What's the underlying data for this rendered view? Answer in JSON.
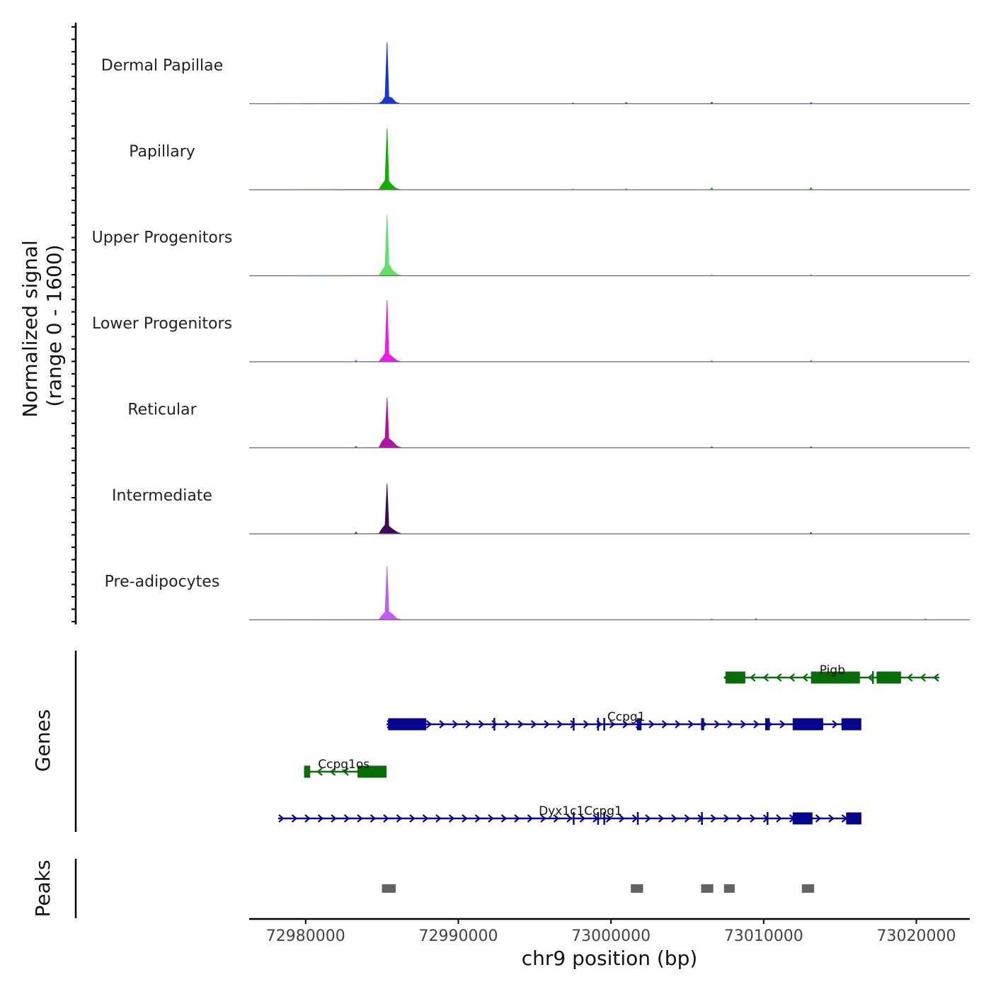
{
  "chart_data": {
    "type": "area",
    "title": "",
    "xlabel": "chr9 position (bp)",
    "ylabel": "Normalized signal\n(range 0 - 1600)",
    "ylabel_lines": [
      "Normalized signal",
      "(range 0 - 1600)"
    ],
    "ylim": [
      0,
      1600
    ],
    "xlim": [
      72976300,
      73023500
    ],
    "x_ticks": [
      72980000,
      72990000,
      73000000,
      73010000,
      73020000
    ],
    "x_tick_labels": [
      "72980000",
      "72990000",
      "73000000",
      "73010000",
      "73020000"
    ],
    "panel_labels": {
      "genes": "Genes",
      "peaks": "Peaks"
    },
    "series": [
      {
        "name": "Dermal Papillae",
        "color": "#1437d8",
        "values": [
          [
            72976300,
            0
          ],
          [
            72984800,
            8
          ],
          [
            72985000,
            60
          ],
          [
            72985200,
            180
          ],
          [
            72985330,
            1600
          ],
          [
            72985450,
            180
          ],
          [
            72985650,
            150
          ],
          [
            72985900,
            40
          ],
          [
            72986200,
            0
          ],
          [
            72997400,
            0
          ],
          [
            72997500,
            20
          ],
          [
            72997600,
            0
          ],
          [
            73000900,
            0
          ],
          [
            73001000,
            35
          ],
          [
            73001100,
            0
          ],
          [
            73006500,
            0
          ],
          [
            73006600,
            40
          ],
          [
            73006700,
            0
          ],
          [
            73013000,
            0
          ],
          [
            73013100,
            30
          ],
          [
            73013200,
            0
          ],
          [
            73023500,
            0
          ]
        ]
      },
      {
        "name": "Papillary",
        "color": "#11b000",
        "values": [
          [
            72976300,
            0
          ],
          [
            72984800,
            8
          ],
          [
            72985000,
            130
          ],
          [
            72985200,
            240
          ],
          [
            72985330,
            1600
          ],
          [
            72985450,
            220
          ],
          [
            72985650,
            130
          ],
          [
            72985900,
            40
          ],
          [
            72986200,
            0
          ],
          [
            72997400,
            0
          ],
          [
            72997500,
            20
          ],
          [
            72997600,
            0
          ],
          [
            73000900,
            0
          ],
          [
            73001000,
            25
          ],
          [
            73001100,
            0
          ],
          [
            73006500,
            0
          ],
          [
            73006600,
            50
          ],
          [
            73006700,
            0
          ],
          [
            73013000,
            0
          ],
          [
            73013100,
            55
          ],
          [
            73013200,
            0
          ],
          [
            73023500,
            0
          ]
        ]
      },
      {
        "name": "Upper Progenitors",
        "color": "#5ee06a",
        "values": [
          [
            72976300,
            0
          ],
          [
            72984800,
            8
          ],
          [
            72985000,
            130
          ],
          [
            72985200,
            250
          ],
          [
            72985330,
            1600
          ],
          [
            72985450,
            300
          ],
          [
            72985700,
            140
          ],
          [
            72986000,
            40
          ],
          [
            72986300,
            0
          ],
          [
            73006500,
            0
          ],
          [
            73006600,
            25
          ],
          [
            73006700,
            0
          ],
          [
            73013000,
            0
          ],
          [
            73013100,
            35
          ],
          [
            73013200,
            0
          ],
          [
            73023500,
            0
          ]
        ]
      },
      {
        "name": "Lower Progenitors",
        "color": "#ee1ae8",
        "values": [
          [
            72976300,
            0
          ],
          [
            72983200,
            0
          ],
          [
            72983300,
            40
          ],
          [
            72983400,
            0
          ],
          [
            72984800,
            8
          ],
          [
            72985000,
            100
          ],
          [
            72985200,
            220
          ],
          [
            72985330,
            1600
          ],
          [
            72985450,
            200
          ],
          [
            72985700,
            120
          ],
          [
            72986000,
            30
          ],
          [
            72986300,
            0
          ],
          [
            73006500,
            0
          ],
          [
            73006600,
            25
          ],
          [
            73006700,
            0
          ],
          [
            73013000,
            0
          ],
          [
            73013100,
            35
          ],
          [
            73013200,
            0
          ],
          [
            73023500,
            0
          ]
        ]
      },
      {
        "name": "Reticular",
        "color": "#b013a6",
        "values": [
          [
            72976300,
            0
          ],
          [
            72983200,
            0
          ],
          [
            72983300,
            40
          ],
          [
            72983400,
            0
          ],
          [
            72984800,
            8
          ],
          [
            72985000,
            160
          ],
          [
            72985200,
            260
          ],
          [
            72985330,
            1300
          ],
          [
            72985450,
            240
          ],
          [
            72985700,
            160
          ],
          [
            72986000,
            40
          ],
          [
            72986300,
            0
          ],
          [
            73006500,
            0
          ],
          [
            73006600,
            30
          ],
          [
            73006700,
            0
          ],
          [
            73013000,
            0
          ],
          [
            73013100,
            30
          ],
          [
            73013200,
            0
          ],
          [
            73023500,
            0
          ]
        ]
      },
      {
        "name": "Intermediate",
        "color": "#3d0a5c",
        "values": [
          [
            72976300,
            0
          ],
          [
            72983200,
            0
          ],
          [
            72983300,
            45
          ],
          [
            72983400,
            0
          ],
          [
            72984800,
            8
          ],
          [
            72985000,
            130
          ],
          [
            72985200,
            230
          ],
          [
            72985330,
            1300
          ],
          [
            72985450,
            200
          ],
          [
            72985700,
            120
          ],
          [
            72986000,
            40
          ],
          [
            72986300,
            0
          ],
          [
            73013000,
            0
          ],
          [
            73013100,
            35
          ],
          [
            73013200,
            0
          ],
          [
            73023500,
            0
          ]
        ]
      },
      {
        "name": "Pre-adipocytes",
        "color": "#c55cf2",
        "values": [
          [
            72976300,
            0
          ],
          [
            72984800,
            8
          ],
          [
            72985000,
            110
          ],
          [
            72985200,
            200
          ],
          [
            72985330,
            1400
          ],
          [
            72985450,
            220
          ],
          [
            72985700,
            140
          ],
          [
            72986000,
            30
          ],
          [
            72986300,
            0
          ],
          [
            73006500,
            0
          ],
          [
            73006600,
            25
          ],
          [
            73006700,
            0
          ],
          [
            73009400,
            0
          ],
          [
            73009500,
            40
          ],
          [
            73009600,
            0
          ],
          [
            73020500,
            0
          ],
          [
            73020600,
            30
          ],
          [
            73020700,
            0
          ],
          [
            73023500,
            0
          ]
        ]
      }
    ],
    "genes": [
      {
        "name": "Ccpg1os",
        "strand": "-",
        "color": "#0a6b0a",
        "start": 72979900,
        "end": 72985300,
        "label_x": 72982500,
        "exons": [
          [
            72979900,
            72980300
          ],
          [
            72983400,
            72985300
          ]
        ]
      },
      {
        "name": "Ccpg1",
        "strand": "+",
        "color": "#06068f",
        "start": 72985300,
        "end": 73016300,
        "label_x": 73001000,
        "exons": [
          [
            72985400,
            72987900
          ],
          [
            72992300,
            72992350
          ],
          [
            72997500,
            72997550
          ],
          [
            72999100,
            72999150
          ],
          [
            72999500,
            72999550
          ],
          [
            73001700,
            73002000
          ],
          [
            73005900,
            73006100
          ],
          [
            73010100,
            73010400
          ],
          [
            73011900,
            73013900
          ],
          [
            73015100,
            73016400
          ]
        ]
      },
      {
        "name": "Dyx1c1Ccpg1",
        "strand": "+",
        "color": "#06068f",
        "start": 72978200,
        "end": 73016300,
        "label_x": 72998000,
        "exons": [
          [
            72997500,
            72997550
          ],
          [
            72999100,
            72999150
          ],
          [
            72999500,
            72999550
          ],
          [
            73001700,
            73001800
          ],
          [
            73005900,
            73006000
          ],
          [
            73010200,
            73010250
          ],
          [
            73011900,
            73013200
          ],
          [
            73015400,
            73016400
          ]
        ]
      },
      {
        "name": "Pigb",
        "strand": "-",
        "color": "#0a6b0a",
        "start": 73007400,
        "end": 73021500,
        "label_x": 73014500,
        "exons": [
          [
            73007500,
            73008800
          ],
          [
            73013100,
            73016300
          ],
          [
            73017100,
            73017200
          ],
          [
            73017400,
            73019000
          ]
        ]
      }
    ],
    "peaks": [
      {
        "start": 72985000,
        "end": 72985900
      },
      {
        "start": 73001300,
        "end": 73002100
      },
      {
        "start": 73005900,
        "end": 73006700
      },
      {
        "start": 73007400,
        "end": 73008100
      },
      {
        "start": 73012500,
        "end": 73013300
      }
    ]
  }
}
